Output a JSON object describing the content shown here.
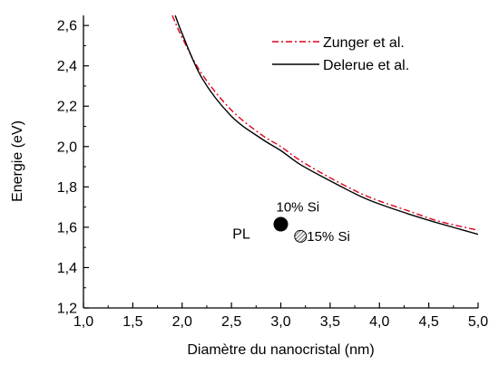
{
  "chart_data": {
    "type": "line",
    "xlabel": "Diamètre du nanocristal (nm)",
    "ylabel": "Energie (eV)",
    "xlim": [
      1.0,
      5.0
    ],
    "ylim": [
      1.2,
      2.65
    ],
    "xticks": [
      1.0,
      1.5,
      2.0,
      2.5,
      3.0,
      3.5,
      4.0,
      4.5,
      5.0
    ],
    "xtick_labels": [
      "1,0",
      "1,5",
      "2,0",
      "2,5",
      "3,0",
      "3,5",
      "4,0",
      "4,5",
      "5,0"
    ],
    "yticks": [
      1.2,
      1.4,
      1.6,
      1.8,
      2.0,
      2.2,
      2.4,
      2.6
    ],
    "ytick_labels": [
      "1,2",
      "1,4",
      "1,6",
      "1,8",
      "2,0",
      "2,2",
      "2,4",
      "2,6"
    ],
    "legend_position": "top-right",
    "grid": false,
    "series": [
      {
        "name": "Zunger et al.",
        "color": "#e0001b",
        "dash": "dash-dot",
        "x": [
          1.9,
          2.0,
          2.2,
          2.5,
          2.8,
          3.0,
          3.2,
          3.5,
          3.8,
          4.0,
          4.3,
          4.6,
          5.0
        ],
        "y": [
          2.65,
          2.54,
          2.36,
          2.18,
          2.06,
          2.0,
          1.93,
          1.845,
          1.77,
          1.73,
          1.68,
          1.63,
          1.585
        ]
      },
      {
        "name": "Delerue et al.",
        "color": "#000000",
        "dash": "solid",
        "x": [
          1.93,
          2.0,
          2.2,
          2.5,
          2.8,
          3.0,
          3.2,
          3.5,
          3.8,
          4.0,
          4.3,
          4.6,
          5.0
        ],
        "y": [
          2.65,
          2.56,
          2.34,
          2.15,
          2.04,
          1.98,
          1.91,
          1.83,
          1.755,
          1.715,
          1.665,
          1.62,
          1.565
        ]
      }
    ],
    "points": [
      {
        "label": "10% Si",
        "x": 3.0,
        "y": 1.615,
        "style": "filled"
      },
      {
        "label": "15% Si",
        "x": 3.2,
        "y": 1.555,
        "style": "hatched"
      }
    ],
    "annotations": [
      {
        "text": "PL",
        "x": 2.6,
        "y": 1.57
      }
    ]
  }
}
